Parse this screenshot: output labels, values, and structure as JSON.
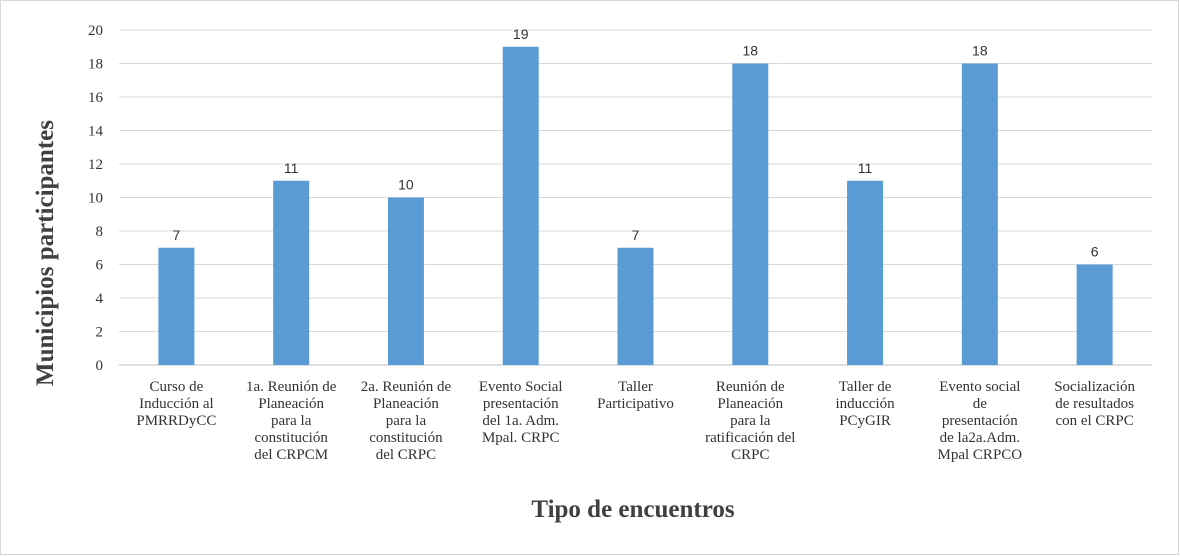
{
  "chart_data": {
    "type": "bar",
    "xlabel": "Tipo de encuentros",
    "ylabel": "Municipios participantes",
    "ylim": [
      0,
      20
    ],
    "ytick_step": 2,
    "grid": true,
    "bar_color": "#5b9bd5",
    "categories": [
      [
        "Curso de",
        "Inducción al",
        "PMRRDyCC"
      ],
      [
        "1a. Reunión de",
        "Planeación",
        "para la",
        "constitución",
        "del CRPCM"
      ],
      [
        "2a. Reunión de",
        "Planeación",
        "para la",
        "constitución",
        "del CRPC"
      ],
      [
        "Evento Social",
        "presentación",
        "del 1a. Adm.",
        "Mpal. CRPC"
      ],
      [
        "Taller",
        "Participativo"
      ],
      [
        "Reunión de",
        "Planeación",
        "para la",
        "ratificación del",
        "CRPC"
      ],
      [
        "Taller de",
        "inducción",
        "PCyGIR"
      ],
      [
        "Evento social",
        "de",
        "presentación",
        "de la2a.Adm.",
        "Mpal CRPCO"
      ],
      [
        "Socialización",
        "de resultados",
        "con el CRPC"
      ]
    ],
    "values": [
      7,
      11,
      10,
      19,
      7,
      18,
      11,
      18,
      6
    ]
  }
}
